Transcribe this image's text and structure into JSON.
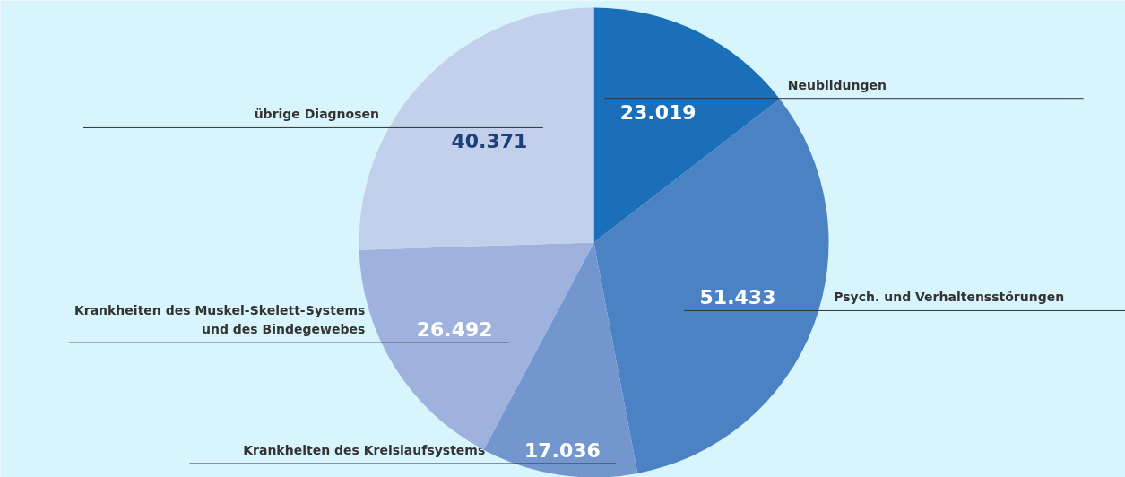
{
  "chart_data": {
    "type": "pie",
    "categories": [
      "Neubildungen",
      "Psych. und Verhaltensstörungen",
      "Krankheiten des Kreislaufsystems",
      "Krankheiten des Muskel-Skelett-Systems\nund des Bindegewebes",
      "übrige Diagnosen"
    ],
    "values": [
      23019,
      51433,
      17036,
      26492,
      40371
    ],
    "value_labels": [
      "23.019",
      "51.433",
      "17.036",
      "26.492",
      "40.371"
    ],
    "colors": [
      "#1a6fb8",
      "#4a82c4",
      "#7496cf",
      "#9fb2de",
      "#c3d0ec"
    ]
  }
}
